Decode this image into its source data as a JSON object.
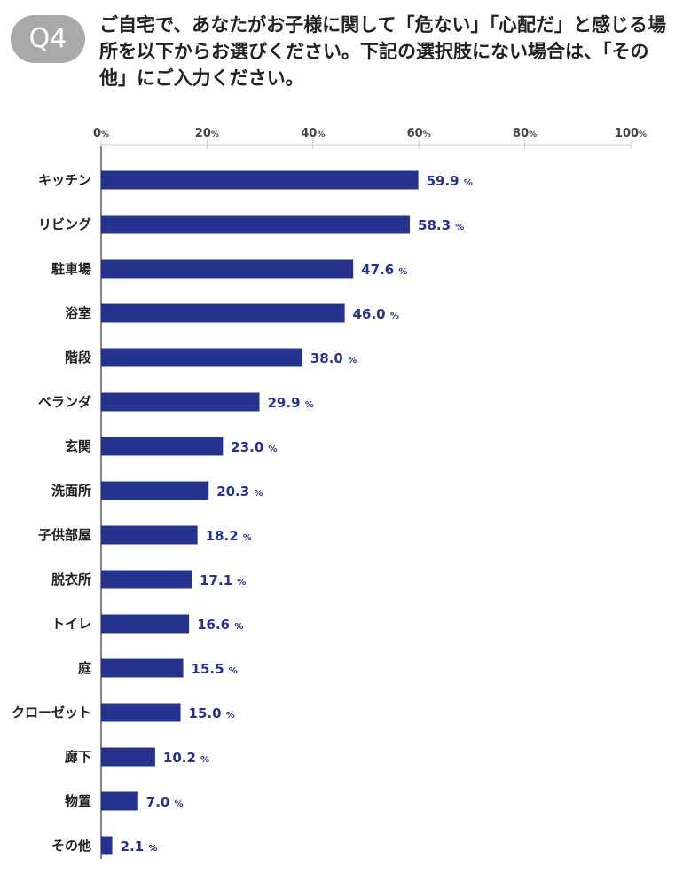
{
  "badge": "Q4",
  "question": "ご自宅で、あなたがお子様に関して「危ない」「心配だ」と感じる場所を以下からお選びください。下記の選択肢にない場合は、「その他」にご入力ください。",
  "colors": {
    "bar": "#25338f",
    "badge": "#a9a9a9",
    "axis": "#333333",
    "grid": "#cccccc"
  },
  "chart_data": {
    "type": "bar",
    "orientation": "horizontal",
    "xlim": [
      0,
      100
    ],
    "ticks": [
      0,
      20,
      40,
      60,
      80,
      100
    ],
    "tick_unit": "%",
    "value_unit": "%",
    "categories": [
      "キッチン",
      "リビング",
      "駐車場",
      "浴室",
      "階段",
      "ベランダ",
      "玄関",
      "洗面所",
      "子供部屋",
      "脱衣所",
      "トイレ",
      "庭",
      "クローゼット",
      "廊下",
      "物置",
      "その他"
    ],
    "values": [
      59.9,
      58.3,
      47.6,
      46.0,
      38.0,
      29.9,
      23.0,
      20.3,
      18.2,
      17.1,
      16.6,
      15.5,
      15.0,
      10.2,
      7.0,
      2.1
    ]
  }
}
